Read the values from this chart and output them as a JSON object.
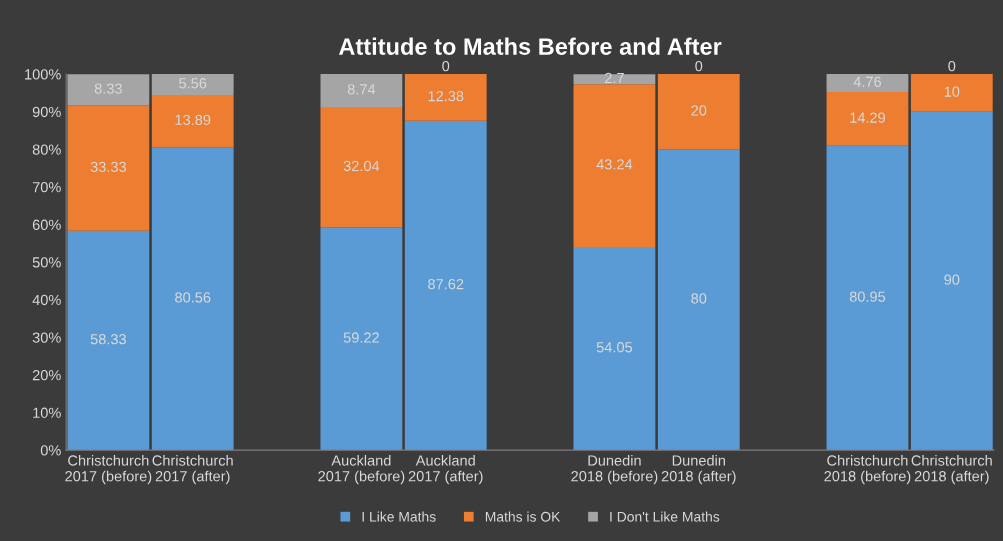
{
  "chart_data": {
    "type": "bar",
    "title": "Attitude to Maths Before and After",
    "categories": [
      "Christchurch\n2017 (before)",
      "Christchurch\n2017 (after)",
      null,
      "Auckland\n2017 (before)",
      "Auckland\n2017 (after)",
      null,
      "Dunedin\n2018 (before)",
      "Dunedin\n2018 (after)",
      null,
      "Christchurch\n2018 (before)",
      "Christchurch\n2018 (after)"
    ],
    "stacked": true,
    "series": [
      {
        "name": "I Like Maths",
        "color": "#5b9bd5",
        "values": [
          58.33,
          80.56,
          null,
          59.22,
          87.62,
          null,
          54.05,
          80,
          null,
          80.95,
          90
        ]
      },
      {
        "name": "Maths is OK",
        "color": "#ed7d31",
        "values": [
          33.33,
          13.89,
          null,
          32.04,
          12.38,
          null,
          43.24,
          20,
          null,
          14.29,
          10
        ]
      },
      {
        "name": "I Don't Like Maths",
        "color": "#a5a5a5",
        "values": [
          8.33,
          5.56,
          null,
          8.74,
          0,
          null,
          2.7,
          0,
          null,
          4.76,
          0
        ]
      }
    ],
    "data_labels": true,
    "ylim": [
      0,
      100
    ],
    "yticks": [
      {
        "value": 0,
        "label": "0%"
      },
      {
        "value": 10,
        "label": "10%"
      },
      {
        "value": 20,
        "label": "20%"
      },
      {
        "value": 30,
        "label": "30%"
      },
      {
        "value": 40,
        "label": "40%"
      },
      {
        "value": 50,
        "label": "50%"
      },
      {
        "value": 60,
        "label": "60%"
      },
      {
        "value": 70,
        "label": "70%"
      },
      {
        "value": 80,
        "label": "80%"
      },
      {
        "value": 90,
        "label": "90%"
      },
      {
        "value": 100,
        "label": "100%"
      }
    ],
    "legend": "bottom"
  }
}
